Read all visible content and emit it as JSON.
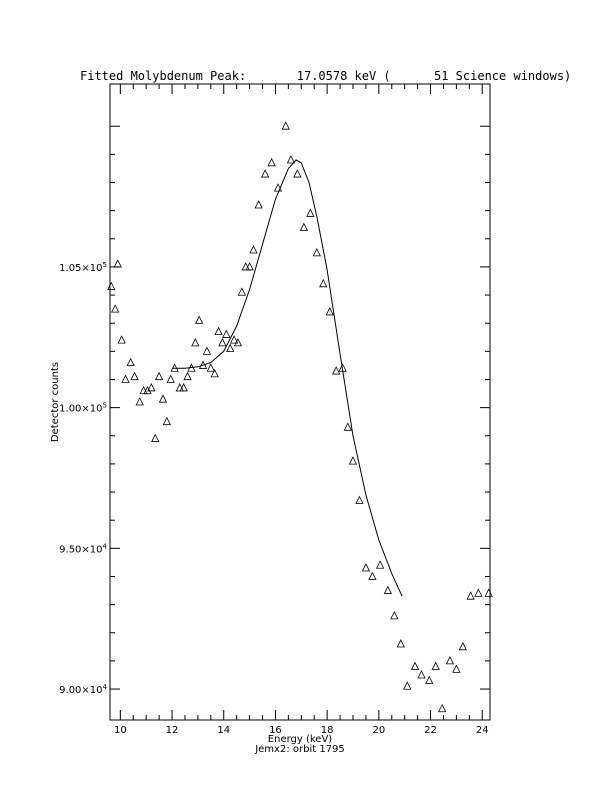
{
  "chart_data": {
    "type": "scatter",
    "title": "Fitted Molybdenum Peak:       17.0578 keV (      51 Science windows)",
    "xlabel": "Energy (keV)",
    "ylabel": "Detector counts",
    "footer": "Jemx2: orbit 1795",
    "xlim": [
      9.6,
      24.3
    ],
    "ylim": [
      88900,
      111500
    ],
    "x_ticks": [
      "10",
      "12",
      "14",
      "16",
      "18",
      "20",
      "22",
      "24"
    ],
    "y_ticks": [
      {
        "value": 90000,
        "mantissa": "9.00",
        "exp": "4"
      },
      {
        "value": 95000,
        "mantissa": "9.50",
        "exp": "4"
      },
      {
        "value": 100000,
        "mantissa": "1.00",
        "exp": "5"
      },
      {
        "value": 105000,
        "mantissa": "1.05",
        "exp": "5"
      }
    ],
    "series": [
      {
        "marker": "triangle",
        "x": [
          9.65,
          9.8,
          9.9,
          10.05,
          10.2,
          10.4,
          10.55,
          10.75,
          10.9,
          11.05,
          11.2,
          11.35,
          11.5,
          11.65,
          11.8,
          11.95,
          12.1,
          12.3,
          12.45,
          12.6,
          12.75,
          12.9,
          13.05,
          13.2,
          13.35,
          13.5,
          13.65,
          13.8,
          13.95,
          14.1,
          14.25,
          14.4,
          14.55,
          14.7,
          14.85,
          15.0,
          15.15,
          15.35,
          15.6,
          15.85,
          16.1,
          16.4,
          16.6,
          16.85,
          17.1,
          17.35,
          17.6,
          17.85,
          18.1,
          18.35,
          18.6,
          18.8,
          19.0,
          19.25,
          19.5,
          19.75,
          20.05,
          20.35,
          20.6,
          20.85,
          21.1,
          21.4,
          21.65,
          21.95,
          22.2,
          22.45,
          22.75,
          23.0,
          23.25,
          23.55,
          23.85,
          24.25
        ],
        "y": [
          104300,
          103500,
          105100,
          102400,
          101000,
          101600,
          101100,
          100200,
          100600,
          100600,
          100700,
          98900,
          101100,
          100300,
          99500,
          101000,
          101400,
          100700,
          100700,
          101100,
          101400,
          102300,
          103100,
          101500,
          102000,
          101400,
          101200,
          102700,
          102300,
          102600,
          102100,
          102400,
          102300,
          104100,
          105000,
          105000,
          105600,
          107200,
          108300,
          108700,
          107800,
          110000,
          108800,
          108300,
          106400,
          106900,
          105500,
          104400,
          103400,
          101300,
          101400,
          99300,
          98100,
          96700,
          94300,
          94000,
          94400,
          93500,
          92600,
          91600,
          90100,
          90800,
          90500,
          90300,
          90800,
          89300,
          91000,
          90700,
          91500,
          93300,
          93400,
          93400
        ]
      },
      {
        "marker": "line",
        "x": [
          12.0,
          12.5,
          13.0,
          13.5,
          14.0,
          14.5,
          15.0,
          15.5,
          16.0,
          16.5,
          16.8,
          17.0,
          17.3,
          17.6,
          18.0,
          18.5,
          19.0,
          19.5,
          20.0,
          20.5,
          20.9
        ],
        "y": [
          101400,
          101400,
          101450,
          101600,
          102000,
          102900,
          104200,
          105800,
          107400,
          108500,
          108800,
          108700,
          108000,
          106800,
          104900,
          101900,
          99000,
          96900,
          95300,
          94100,
          93300
        ]
      }
    ]
  }
}
